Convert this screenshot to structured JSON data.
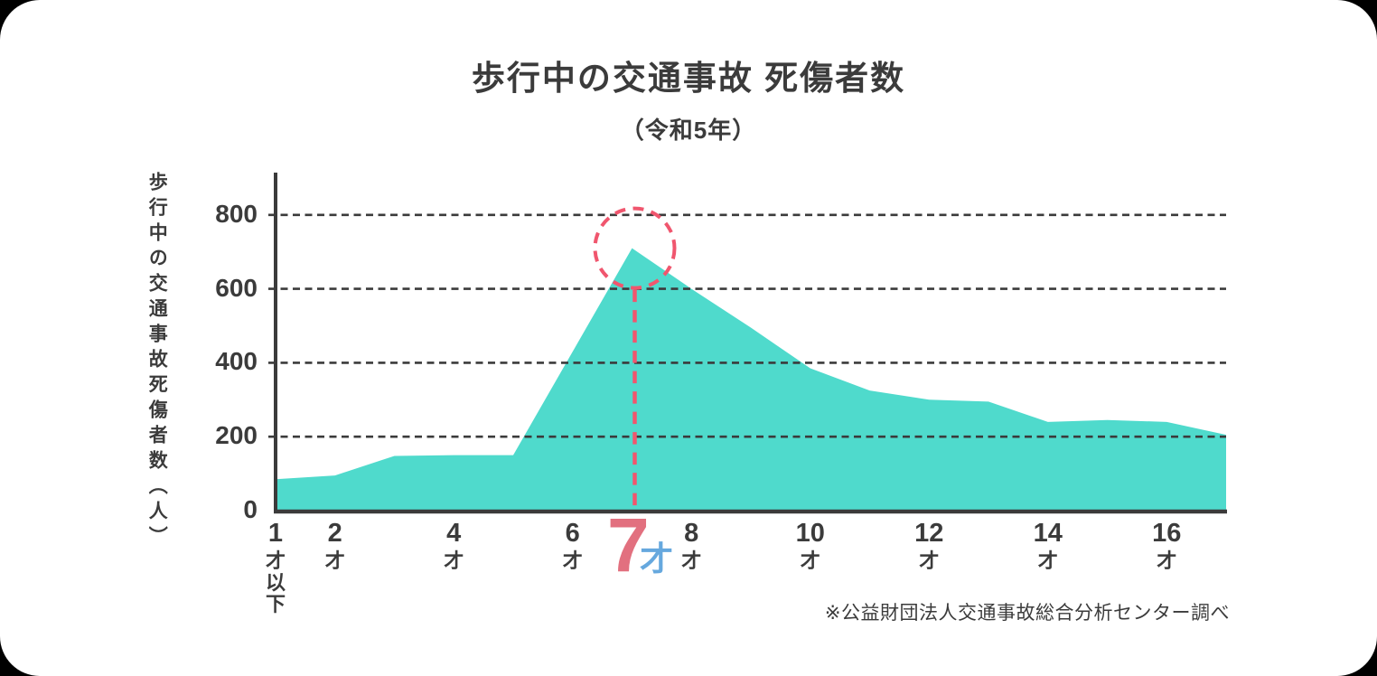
{
  "title": "歩行中の交通事故 死傷者数",
  "subtitle": "（令和5年）",
  "y_axis": {
    "label": "歩行中の交通事故死傷者数（人）",
    "ticks": [
      800,
      600,
      400,
      200,
      0
    ]
  },
  "x_axis": {
    "ticks": [
      {
        "age": 1,
        "number": "1",
        "suffix": "才以下"
      },
      {
        "age": 2,
        "number": "2",
        "suffix": "才"
      },
      {
        "age": 4,
        "number": "4",
        "suffix": "才"
      },
      {
        "age": 6,
        "number": "6",
        "suffix": "才"
      },
      {
        "age": 8,
        "number": "8",
        "suffix": "才"
      },
      {
        "age": 10,
        "number": "10",
        "suffix": "才"
      },
      {
        "age": 12,
        "number": "12",
        "suffix": "才"
      },
      {
        "age": 14,
        "number": "14",
        "suffix": "才"
      },
      {
        "age": 16,
        "number": "16",
        "suffix": "才"
      }
    ]
  },
  "highlight": {
    "number": "7",
    "suffix": "才"
  },
  "footnote": "※公益財団法人交通事故総合分析センター調べ",
  "colors": {
    "area": "#4FDACC",
    "accent": "#F0566E",
    "highlight_number": "#E2707F",
    "highlight_suffix": "#66A8DE",
    "text": "#3B3B3B"
  },
  "chart_data": {
    "type": "area",
    "title": "歩行中の交通事故 死傷者数（令和5年）",
    "xlabel": "",
    "ylabel": "歩行中の交通事故死傷者数（人）",
    "x": [
      1,
      2,
      3,
      4,
      5,
      6,
      7,
      8,
      9,
      10,
      11,
      12,
      13,
      14,
      15,
      16,
      17
    ],
    "values": [
      85,
      95,
      148,
      150,
      150,
      430,
      710,
      600,
      495,
      385,
      325,
      300,
      295,
      240,
      245,
      240,
      205
    ],
    "ylim": [
      0,
      880
    ],
    "y_ticks": [
      0,
      200,
      400,
      600,
      800
    ],
    "grid": "dashed-horizontal",
    "legend": "none",
    "highlight_x": 7,
    "highlight_value": 710
  }
}
